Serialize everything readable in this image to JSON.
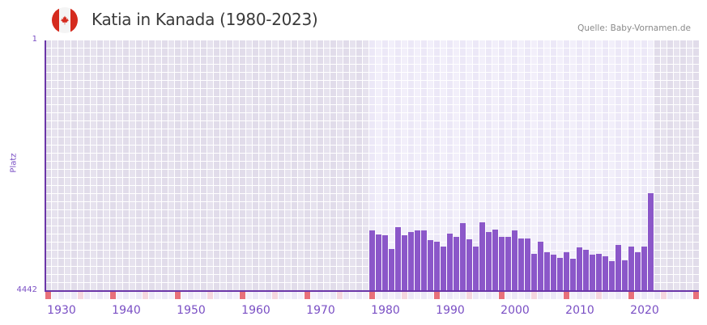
{
  "header": {
    "title": "Katia in Kanada (1980-2023)",
    "source": "Quelle: Baby-Vornamen.de",
    "flag": "canada-flag-icon"
  },
  "colors": {
    "bar": "#8b57c9",
    "axis": "#6b36a8",
    "label": "#7a4fc4",
    "decade_marker": "#e8707a",
    "half_decade_marker": "#f5d6df",
    "year_marker": "#efeaf8",
    "bg_outside": "#e3dfec",
    "bg_inside": "#efebf8"
  },
  "chart_data": {
    "type": "bar",
    "title": "Katia in Kanada (1980-2023)",
    "xlabel": "",
    "ylabel": "Platz",
    "ylim": [
      4442,
      1
    ],
    "y_inverted": true,
    "y_ticks": [
      "1",
      "4442"
    ],
    "x_ticks": [
      "1930",
      "1940",
      "1950",
      "1960",
      "1970",
      "1980",
      "1990",
      "2000",
      "2010",
      "2020"
    ],
    "x_range": [
      1928,
      2028
    ],
    "grid": true,
    "legend": null,
    "categories": [
      1980,
      1981,
      1982,
      1983,
      1984,
      1985,
      1986,
      1987,
      1988,
      1989,
      1990,
      1991,
      1992,
      1993,
      1994,
      1995,
      1996,
      1997,
      1998,
      1999,
      2000,
      2001,
      2002,
      2003,
      2004,
      2005,
      2006,
      2007,
      2008,
      2009,
      2010,
      2011,
      2012,
      2013,
      2014,
      2015,
      2016,
      2017,
      2018,
      2019,
      2020,
      2021,
      2022,
      2023
    ],
    "series": [
      {
        "name": "Platz",
        "values": [
          3368,
          3439,
          3454,
          3697,
          3310,
          3454,
          3396,
          3368,
          3368,
          3540,
          3568,
          3654,
          3425,
          3482,
          3239,
          3525,
          3654,
          3224,
          3396,
          3353,
          3482,
          3482,
          3368,
          3511,
          3511,
          3783,
          3568,
          3754,
          3797,
          3855,
          3754,
          3869,
          3668,
          3712,
          3797,
          3783,
          3826,
          3912,
          3625,
          3898,
          3654,
          3754,
          3654,
          2709
        ]
      }
    ]
  }
}
